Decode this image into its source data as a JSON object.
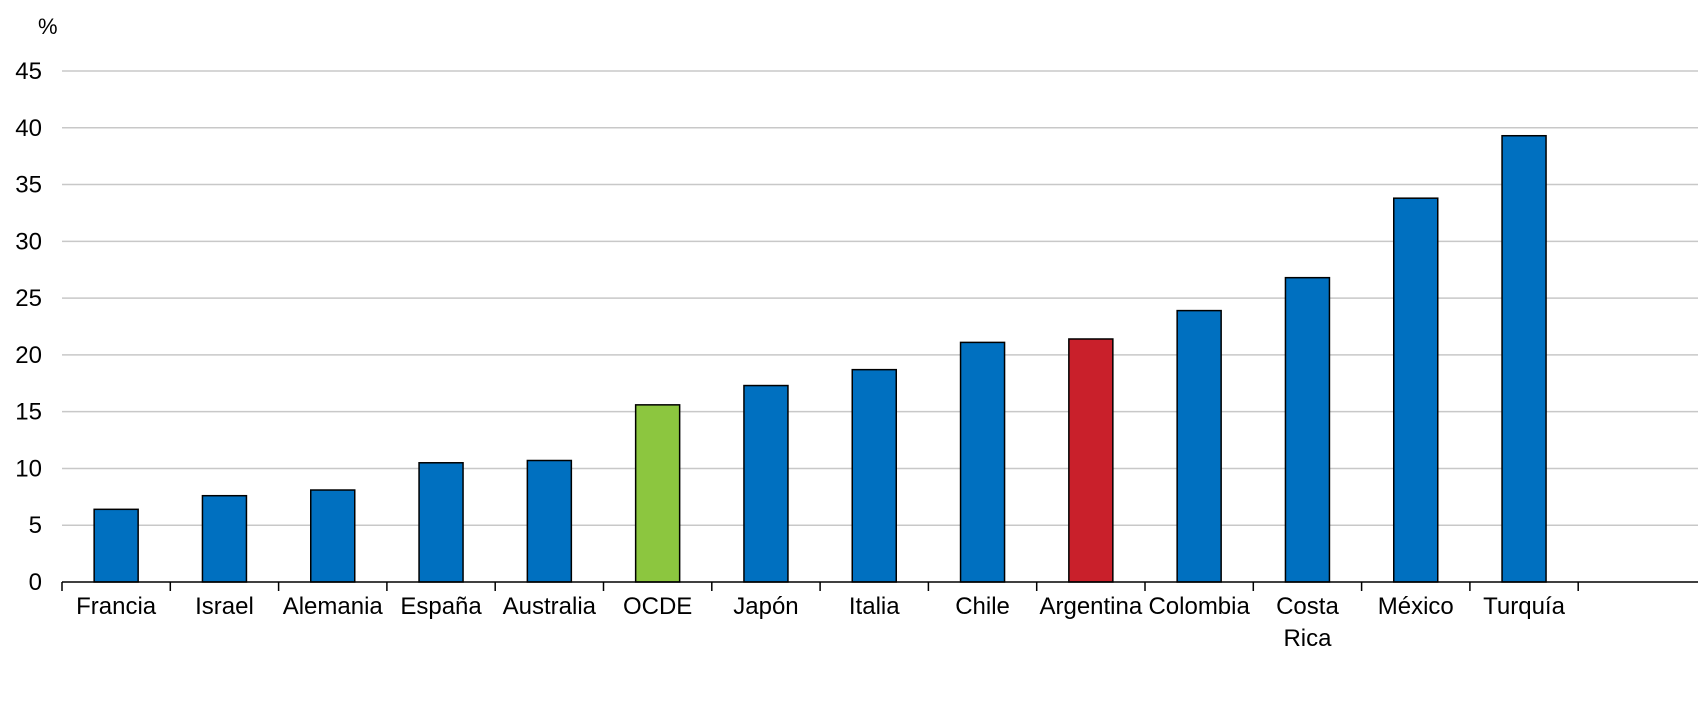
{
  "chart_data": {
    "type": "bar",
    "unit_label": "%",
    "categories": [
      "Francia",
      "Israel",
      "Alemania",
      "España",
      "Australia",
      "OCDE",
      "Japón",
      "Italia",
      "Chile",
      "Argentina",
      "Colombia",
      "Costa Rica",
      "México",
      "Turquía"
    ],
    "values": [
      6.4,
      7.6,
      8.1,
      10.5,
      10.7,
      15.6,
      17.3,
      18.7,
      21.1,
      21.4,
      23.9,
      26.8,
      33.8,
      39.3
    ],
    "bar_colors": [
      "#0070c0",
      "#0070c0",
      "#0070c0",
      "#0070c0",
      "#0070c0",
      "#8cc63f",
      "#0070c0",
      "#0070c0",
      "#0070c0",
      "#c9202b",
      "#0070c0",
      "#0070c0",
      "#0070c0",
      "#0070c0"
    ],
    "ylim": [
      0,
      45
    ],
    "yticks": [
      "0",
      "5",
      "10",
      "15",
      "20",
      "25",
      "30",
      "35",
      "40",
      "45"
    ],
    "grid": true,
    "xlabel": "",
    "ylabel": ""
  }
}
